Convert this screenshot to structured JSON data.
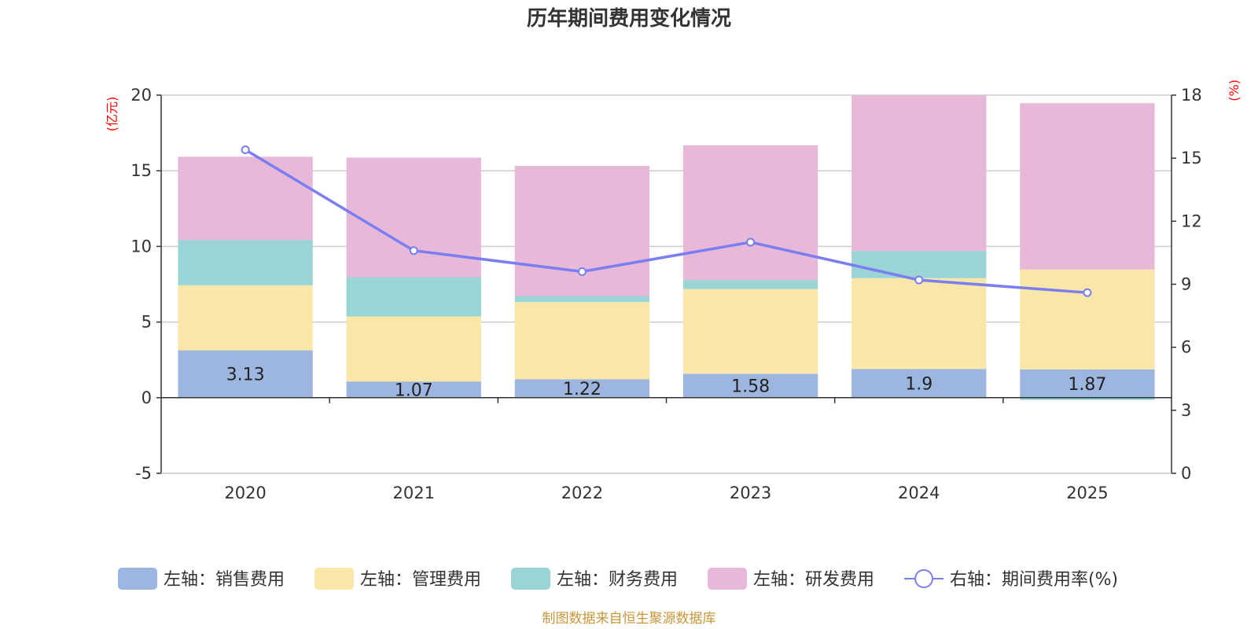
{
  "chart_data": {
    "type": "bar",
    "title": "历年期间费用变化情况",
    "categories": [
      "2020",
      "2021",
      "2022",
      "2023",
      "2024",
      "2025"
    ],
    "y_left": {
      "unit": "(亿元)",
      "min": -5,
      "max": 20,
      "ticks": [
        -5,
        0,
        5,
        10,
        15,
        20
      ]
    },
    "y_right": {
      "unit": "(%)",
      "min": 0,
      "max": 18,
      "ticks": [
        0,
        3,
        6,
        9,
        12,
        15,
        18
      ]
    },
    "series": [
      {
        "name": "左轴：销售费用",
        "type": "bar",
        "axis": "left",
        "color": "#9db6e0",
        "values": [
          3.13,
          1.07,
          1.22,
          1.58,
          1.9,
          1.87
        ],
        "labels": [
          "3.13",
          "1.07",
          "1.22",
          "1.58",
          "1.9",
          "1.87"
        ]
      },
      {
        "name": "左轴：管理费用",
        "type": "bar",
        "axis": "left",
        "color": "#f8e7a8",
        "values": [
          4.3,
          4.3,
          5.1,
          5.6,
          6.0,
          6.6
        ]
      },
      {
        "name": "左轴：财务费用",
        "type": "bar",
        "axis": "left",
        "color": "#9ad4d4",
        "values": [
          3.0,
          2.6,
          0.4,
          0.6,
          1.8,
          -0.15
        ]
      },
      {
        "name": "左轴：研发费用",
        "type": "bar",
        "axis": "left",
        "color": "#e8b8d9",
        "values": [
          5.5,
          7.9,
          8.6,
          8.9,
          10.3,
          11.0
        ]
      },
      {
        "name": "右轴：期间费用率(%)",
        "type": "line",
        "axis": "right",
        "color": "#7b7ef0",
        "values": [
          15.4,
          10.6,
          9.6,
          11.0,
          9.2,
          8.6
        ]
      }
    ]
  },
  "source": "制图数据来自恒生聚源数据库"
}
